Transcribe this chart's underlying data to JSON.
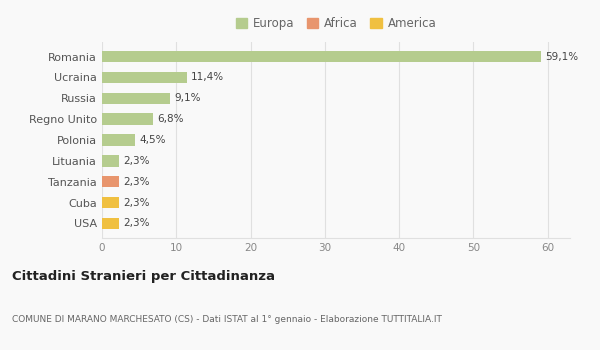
{
  "categories": [
    "Romania",
    "Ucraina",
    "Russia",
    "Regno Unito",
    "Polonia",
    "Lituania",
    "Tanzania",
    "Cuba",
    "USA"
  ],
  "values": [
    59.1,
    11.4,
    9.1,
    6.8,
    4.5,
    2.3,
    2.3,
    2.3,
    2.3
  ],
  "labels": [
    "59,1%",
    "11,4%",
    "9,1%",
    "6,8%",
    "4,5%",
    "2,3%",
    "2,3%",
    "2,3%",
    "2,3%"
  ],
  "colors": [
    "#b5cc8e",
    "#b5cc8e",
    "#b5cc8e",
    "#b5cc8e",
    "#b5cc8e",
    "#b5cc8e",
    "#e8956d",
    "#f0c040",
    "#f0c040"
  ],
  "legend": [
    {
      "label": "Europa",
      "color": "#b5cc8e"
    },
    {
      "label": "Africa",
      "color": "#e8956d"
    },
    {
      "label": "America",
      "color": "#f0c040"
    }
  ],
  "xlim": [
    0,
    63
  ],
  "xticks": [
    0,
    10,
    20,
    30,
    40,
    50,
    60
  ],
  "title": "Cittadini Stranieri per Cittadinanza",
  "subtitle": "COMUNE DI MARANO MARCHESATO (CS) - Dati ISTAT al 1° gennaio - Elaborazione TUTTITALIA.IT",
  "background_color": "#f9f9f9",
  "grid_color": "#e0e0e0",
  "bar_height": 0.55
}
